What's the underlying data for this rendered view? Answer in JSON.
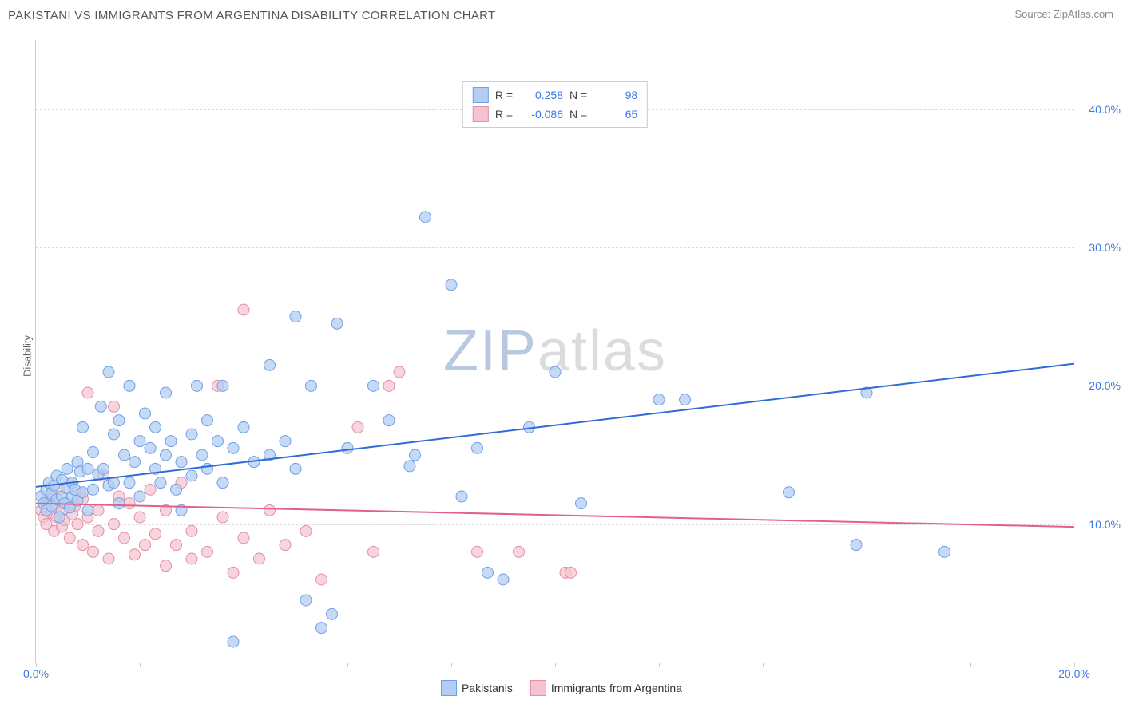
{
  "chart": {
    "type": "scatter-regression",
    "title": "PAKISTANI VS IMMIGRANTS FROM ARGENTINA DISABILITY CORRELATION CHART",
    "source_label": "Source: ZipAtlas.com",
    "ylabel": "Disability",
    "background_color": "#ffffff",
    "grid_color": "#dddddd",
    "axis_color": "#cccccc",
    "tick_label_color": "#3b78e7",
    "title_color": "#555555",
    "title_fontsize": 15,
    "label_fontsize": 13,
    "tick_fontsize": 14,
    "xlim": [
      0,
      20
    ],
    "ylim": [
      0,
      45
    ],
    "yticks": [
      10,
      20,
      30,
      40
    ],
    "ytick_labels": [
      "10.0%",
      "20.0%",
      "30.0%",
      "40.0%"
    ],
    "xticks": [
      0,
      20
    ],
    "xtick_labels": [
      "0.0%",
      "20.0%"
    ],
    "xtick_marks": [
      0,
      2,
      4,
      6,
      8,
      10,
      12,
      14,
      16,
      18,
      20
    ],
    "marker_radius": 7,
    "marker_stroke_width": 1,
    "line_width": 2,
    "watermark": {
      "zip": "ZIP",
      "atlas": "atlas",
      "zip_color": "#b8c8e0",
      "atlas_color": "#dcdcdc",
      "fontsize": 72
    }
  },
  "correlation_box": {
    "rows": [
      {
        "swatch_fill": "#b3cef2",
        "swatch_stroke": "#6fa0e8",
        "r_label": "R =",
        "r_value": "0.258",
        "n_label": "N =",
        "n_value": "98"
      },
      {
        "swatch_fill": "#f5c3cf",
        "swatch_stroke": "#e38fa6",
        "r_label": "R =",
        "r_value": "-0.086",
        "n_label": "N =",
        "n_value": "65"
      }
    ],
    "label_color": "#444444",
    "value_color": "#3b78e7",
    "border_color": "#cccccc"
  },
  "legend": {
    "items": [
      {
        "swatch_fill": "#b3cef2",
        "swatch_stroke": "#6fa0e8",
        "label": "Pakistanis"
      },
      {
        "swatch_fill": "#f5c3cf",
        "swatch_stroke": "#e38fa6",
        "label": "Immigrants from Argentina"
      }
    ]
  },
  "series": [
    {
      "name": "Pakistanis",
      "marker_fill": "#b3cef2",
      "marker_stroke": "#6fa0e8",
      "marker_opacity": 0.75,
      "regression": {
        "x1": 0,
        "y1": 12.7,
        "x2": 20,
        "y2": 21.6,
        "color": "#2e6bd6"
      },
      "points": [
        [
          0.1,
          12.0
        ],
        [
          0.15,
          11.5
        ],
        [
          0.2,
          12.5
        ],
        [
          0.2,
          11.0
        ],
        [
          0.25,
          13.0
        ],
        [
          0.3,
          12.2
        ],
        [
          0.3,
          11.3
        ],
        [
          0.35,
          12.8
        ],
        [
          0.4,
          13.5
        ],
        [
          0.4,
          11.8
        ],
        [
          0.45,
          10.5
        ],
        [
          0.5,
          12.0
        ],
        [
          0.5,
          13.2
        ],
        [
          0.55,
          11.5
        ],
        [
          0.6,
          12.6
        ],
        [
          0.6,
          14.0
        ],
        [
          0.65,
          11.2
        ],
        [
          0.7,
          13.0
        ],
        [
          0.7,
          12.0
        ],
        [
          0.75,
          12.5
        ],
        [
          0.8,
          14.5
        ],
        [
          0.8,
          11.7
        ],
        [
          0.85,
          13.8
        ],
        [
          0.9,
          12.3
        ],
        [
          0.9,
          17.0
        ],
        [
          1.0,
          14.0
        ],
        [
          1.0,
          11.0
        ],
        [
          1.1,
          15.2
        ],
        [
          1.1,
          12.5
        ],
        [
          1.2,
          13.6
        ],
        [
          1.25,
          18.5
        ],
        [
          1.3,
          14.0
        ],
        [
          1.4,
          21.0
        ],
        [
          1.4,
          12.8
        ],
        [
          1.5,
          16.5
        ],
        [
          1.5,
          13.0
        ],
        [
          1.6,
          17.5
        ],
        [
          1.6,
          11.5
        ],
        [
          1.7,
          15.0
        ],
        [
          1.8,
          13.0
        ],
        [
          1.8,
          20.0
        ],
        [
          1.9,
          14.5
        ],
        [
          2.0,
          12.0
        ],
        [
          2.0,
          16.0
        ],
        [
          2.1,
          18.0
        ],
        [
          2.2,
          15.5
        ],
        [
          2.3,
          14.0
        ],
        [
          2.3,
          17.0
        ],
        [
          2.4,
          13.0
        ],
        [
          2.5,
          19.5
        ],
        [
          2.5,
          15.0
        ],
        [
          2.6,
          16.0
        ],
        [
          2.7,
          12.5
        ],
        [
          2.8,
          14.5
        ],
        [
          2.8,
          11.0
        ],
        [
          3.0,
          16.5
        ],
        [
          3.0,
          13.5
        ],
        [
          3.1,
          20.0
        ],
        [
          3.2,
          15.0
        ],
        [
          3.3,
          17.5
        ],
        [
          3.3,
          14.0
        ],
        [
          3.5,
          16.0
        ],
        [
          3.6,
          20.0
        ],
        [
          3.6,
          13.0
        ],
        [
          3.8,
          15.5
        ],
        [
          3.8,
          1.5
        ],
        [
          4.0,
          17.0
        ],
        [
          4.2,
          14.5
        ],
        [
          4.5,
          21.5
        ],
        [
          4.5,
          15.0
        ],
        [
          4.8,
          16.0
        ],
        [
          5.0,
          25.0
        ],
        [
          5.0,
          14.0
        ],
        [
          5.2,
          4.5
        ],
        [
          5.3,
          20.0
        ],
        [
          5.5,
          2.5
        ],
        [
          5.7,
          3.5
        ],
        [
          5.8,
          24.5
        ],
        [
          6.0,
          15.5
        ],
        [
          6.5,
          20.0
        ],
        [
          6.8,
          17.5
        ],
        [
          7.2,
          14.2
        ],
        [
          7.3,
          15.0
        ],
        [
          7.5,
          32.2
        ],
        [
          8.0,
          27.3
        ],
        [
          8.2,
          12.0
        ],
        [
          8.5,
          15.5
        ],
        [
          8.7,
          6.5
        ],
        [
          9.0,
          6.0
        ],
        [
          9.5,
          17.0
        ],
        [
          10.0,
          21.0
        ],
        [
          10.5,
          11.5
        ],
        [
          12.0,
          19.0
        ],
        [
          12.5,
          19.0
        ],
        [
          14.5,
          12.3
        ],
        [
          15.8,
          8.5
        ],
        [
          16.0,
          19.5
        ],
        [
          17.5,
          8.0
        ]
      ]
    },
    {
      "name": "Immigrants from Argentina",
      "marker_fill": "#f5c3cf",
      "marker_stroke": "#e38fa6",
      "marker_opacity": 0.7,
      "regression": {
        "x1": 0,
        "y1": 11.5,
        "x2": 20,
        "y2": 9.8,
        "color": "#e06287"
      },
      "points": [
        [
          0.1,
          11.0
        ],
        [
          0.15,
          10.5
        ],
        [
          0.2,
          11.5
        ],
        [
          0.2,
          10.0
        ],
        [
          0.25,
          11.8
        ],
        [
          0.3,
          10.8
        ],
        [
          0.3,
          12.0
        ],
        [
          0.35,
          9.5
        ],
        [
          0.4,
          11.2
        ],
        [
          0.4,
          10.5
        ],
        [
          0.45,
          12.5
        ],
        [
          0.5,
          11.0
        ],
        [
          0.5,
          9.8
        ],
        [
          0.55,
          10.3
        ],
        [
          0.6,
          11.5
        ],
        [
          0.65,
          9.0
        ],
        [
          0.7,
          10.7
        ],
        [
          0.7,
          13.0
        ],
        [
          0.75,
          11.3
        ],
        [
          0.8,
          10.0
        ],
        [
          0.85,
          12.2
        ],
        [
          0.9,
          8.5
        ],
        [
          0.9,
          11.8
        ],
        [
          1.0,
          10.5
        ],
        [
          1.0,
          19.5
        ],
        [
          1.1,
          8.0
        ],
        [
          1.2,
          11.0
        ],
        [
          1.2,
          9.5
        ],
        [
          1.3,
          13.5
        ],
        [
          1.4,
          7.5
        ],
        [
          1.5,
          10.0
        ],
        [
          1.5,
          18.5
        ],
        [
          1.6,
          12.0
        ],
        [
          1.7,
          9.0
        ],
        [
          1.8,
          11.5
        ],
        [
          1.9,
          7.8
        ],
        [
          2.0,
          10.5
        ],
        [
          2.1,
          8.5
        ],
        [
          2.2,
          12.5
        ],
        [
          2.3,
          9.3
        ],
        [
          2.5,
          7.0
        ],
        [
          2.5,
          11.0
        ],
        [
          2.7,
          8.5
        ],
        [
          2.8,
          13.0
        ],
        [
          3.0,
          9.5
        ],
        [
          3.0,
          7.5
        ],
        [
          3.3,
          8.0
        ],
        [
          3.5,
          20.0
        ],
        [
          3.6,
          10.5
        ],
        [
          3.8,
          6.5
        ],
        [
          4.0,
          9.0
        ],
        [
          4.0,
          25.5
        ],
        [
          4.3,
          7.5
        ],
        [
          4.5,
          11.0
        ],
        [
          4.8,
          8.5
        ],
        [
          5.2,
          9.5
        ],
        [
          5.5,
          6.0
        ],
        [
          6.2,
          17.0
        ],
        [
          6.5,
          8.0
        ],
        [
          6.8,
          20.0
        ],
        [
          7.0,
          21.0
        ],
        [
          8.5,
          8.0
        ],
        [
          9.3,
          8.0
        ],
        [
          10.2,
          6.5
        ],
        [
          10.3,
          6.5
        ]
      ]
    }
  ]
}
